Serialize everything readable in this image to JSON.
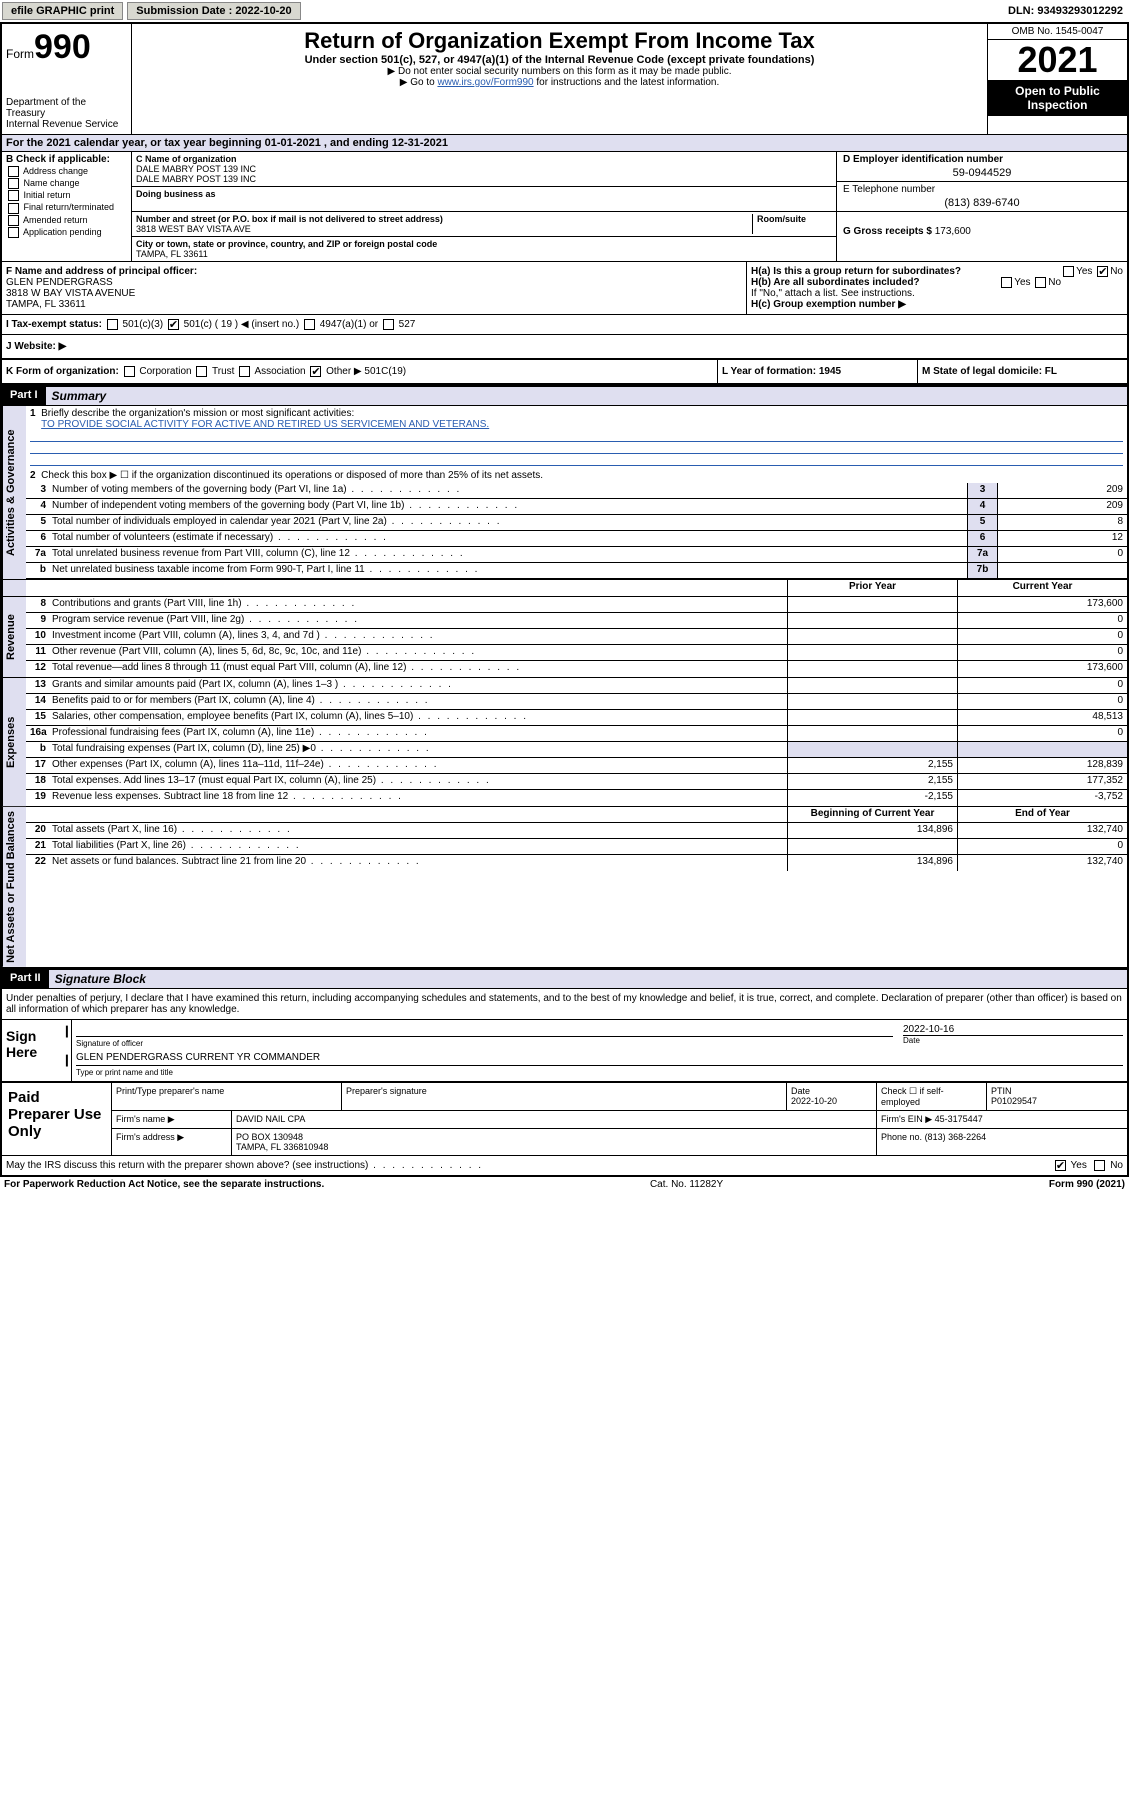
{
  "colors": {
    "link": "#2a5db0",
    "shade": "#dfdff0",
    "button": "#d8d8d0"
  },
  "topbar": {
    "efile": "efile GRAPHIC print",
    "submission": "Submission Date : 2022-10-20",
    "dln": "DLN: 93493293012292"
  },
  "header": {
    "form_label": "Form",
    "form_num": "990",
    "dept": "Department of the Treasury",
    "irs": "Internal Revenue Service",
    "title": "Return of Organization Exempt From Income Tax",
    "subtitle": "Under section 501(c), 527, or 4947(a)(1) of the Internal Revenue Code (except private foundations)",
    "note1": "▶ Do not enter social security numbers on this form as it may be made public.",
    "note2_pre": "▶ Go to ",
    "note2_link": "www.irs.gov/Form990",
    "note2_post": " for instructions and the latest information.",
    "omb": "OMB No. 1545-0047",
    "year": "2021",
    "open": "Open to Public Inspection"
  },
  "line_a": "For the 2021 calendar year, or tax year beginning 01-01-2021   , and ending 12-31-2021",
  "box_b": {
    "label": "B Check if applicable:",
    "opts": [
      "Address change",
      "Name change",
      "Initial return",
      "Final return/terminated",
      "Amended return",
      "Application pending"
    ]
  },
  "box_c": {
    "name_lbl": "C Name of organization",
    "name1": "DALE MABRY POST 139 INC",
    "name2": "DALE MABRY POST 139 INC",
    "dba_lbl": "Doing business as",
    "addr_lbl": "Number and street (or P.O. box if mail is not delivered to street address)",
    "room_lbl": "Room/suite",
    "addr": "3818 WEST BAY VISTA AVE",
    "city_lbl": "City or town, state or province, country, and ZIP or foreign postal code",
    "city": "TAMPA, FL  33611"
  },
  "box_d": {
    "ein_lbl": "D Employer identification number",
    "ein": "59-0944529",
    "tel_lbl": "E Telephone number",
    "tel": "(813) 839-6740",
    "gross_lbl": "G Gross receipts $",
    "gross": "173,600"
  },
  "box_f": {
    "lbl": "F Name and address of principal officer:",
    "name": "GLEN PENDERGRASS",
    "addr1": "3818 W BAY VISTA AVENUE",
    "addr2": "TAMPA, FL  33611"
  },
  "box_h": {
    "ha": "H(a)  Is this a group return for subordinates?",
    "hb": "H(b)  Are all subordinates included?",
    "hb_note": "If \"No,\" attach a list. See instructions.",
    "hc": "H(c)  Group exemption number ▶",
    "yes": "Yes",
    "no": "No"
  },
  "tax_status": {
    "lbl": "I   Tax-exempt status:",
    "o1": "501(c)(3)",
    "o2": "501(c) ( 19 ) ◀ (insert no.)",
    "o3": "4947(a)(1) or",
    "o4": "527"
  },
  "website": {
    "lbl": "J   Website: ▶"
  },
  "row_k": {
    "k": "K Form of organization:",
    "corp": "Corporation",
    "trust": "Trust",
    "assoc": "Association",
    "other": "Other ▶",
    "other_val": "501C(19)",
    "l": "L Year of formation: 1945",
    "m": "M State of legal domicile: FL"
  },
  "part1": {
    "hdr": "Part I",
    "title": "Summary",
    "line1_lbl": "Briefly describe the organization's mission or most significant activities:",
    "line1_val": "TO PROVIDE SOCIAL ACTIVITY FOR ACTIVE AND RETIRED US SERVICEMEN AND VETERANS.",
    "line2": "Check this box ▶ ☐  if the organization discontinued its operations or disposed of more than 25% of its net assets.",
    "rows_gov": [
      {
        "n": "3",
        "t": "Number of voting members of the governing body (Part VI, line 1a)",
        "bn": "3",
        "v": "209"
      },
      {
        "n": "4",
        "t": "Number of independent voting members of the governing body (Part VI, line 1b)",
        "bn": "4",
        "v": "209"
      },
      {
        "n": "5",
        "t": "Total number of individuals employed in calendar year 2021 (Part V, line 2a)",
        "bn": "5",
        "v": "8"
      },
      {
        "n": "6",
        "t": "Total number of volunteers (estimate if necessary)",
        "bn": "6",
        "v": "12"
      },
      {
        "n": "7a",
        "t": "Total unrelated business revenue from Part VIII, column (C), line 12",
        "bn": "7a",
        "v": "0"
      },
      {
        "n": "b",
        "t": "Net unrelated business taxable income from Form 990-T, Part I, line 11",
        "bn": "7b",
        "v": ""
      }
    ],
    "py_hdr": "Prior Year",
    "cy_hdr": "Current Year",
    "rows_rev": [
      {
        "n": "8",
        "t": "Contributions and grants (Part VIII, line 1h)",
        "py": "",
        "cy": "173,600"
      },
      {
        "n": "9",
        "t": "Program service revenue (Part VIII, line 2g)",
        "py": "",
        "cy": "0"
      },
      {
        "n": "10",
        "t": "Investment income (Part VIII, column (A), lines 3, 4, and 7d )",
        "py": "",
        "cy": "0"
      },
      {
        "n": "11",
        "t": "Other revenue (Part VIII, column (A), lines 5, 6d, 8c, 9c, 10c, and 11e)",
        "py": "",
        "cy": "0"
      },
      {
        "n": "12",
        "t": "Total revenue—add lines 8 through 11 (must equal Part VIII, column (A), line 12)",
        "py": "",
        "cy": "173,600"
      }
    ],
    "rows_exp": [
      {
        "n": "13",
        "t": "Grants and similar amounts paid (Part IX, column (A), lines 1–3 )",
        "py": "",
        "cy": "0"
      },
      {
        "n": "14",
        "t": "Benefits paid to or for members (Part IX, column (A), line 4)",
        "py": "",
        "cy": "0"
      },
      {
        "n": "15",
        "t": "Salaries, other compensation, employee benefits (Part IX, column (A), lines 5–10)",
        "py": "",
        "cy": "48,513"
      },
      {
        "n": "16a",
        "t": "Professional fundraising fees (Part IX, column (A), line 11e)",
        "py": "",
        "cy": "0"
      },
      {
        "n": "b",
        "t": "Total fundraising expenses (Part IX, column (D), line 25) ▶0",
        "py": "shade",
        "cy": "shade"
      },
      {
        "n": "17",
        "t": "Other expenses (Part IX, column (A), lines 11a–11d, 11f–24e)",
        "py": "2,155",
        "cy": "128,839"
      },
      {
        "n": "18",
        "t": "Total expenses. Add lines 13–17 (must equal Part IX, column (A), line 25)",
        "py": "2,155",
        "cy": "177,352"
      },
      {
        "n": "19",
        "t": "Revenue less expenses. Subtract line 18 from line 12",
        "py": "-2,155",
        "cy": "-3,752"
      }
    ],
    "na_hdr1": "Beginning of Current Year",
    "na_hdr2": "End of Year",
    "rows_na": [
      {
        "n": "20",
        "t": "Total assets (Part X, line 16)",
        "py": "134,896",
        "cy": "132,740"
      },
      {
        "n": "21",
        "t": "Total liabilities (Part X, line 26)",
        "py": "",
        "cy": "0"
      },
      {
        "n": "22",
        "t": "Net assets or fund balances. Subtract line 21 from line 20",
        "py": "134,896",
        "cy": "132,740"
      }
    ],
    "vtab_gov": "Activities & Governance",
    "vtab_rev": "Revenue",
    "vtab_exp": "Expenses",
    "vtab_na": "Net Assets or Fund Balances"
  },
  "part2": {
    "hdr": "Part II",
    "title": "Signature Block",
    "decl": "Under penalties of perjury, I declare that I have examined this return, including accompanying schedules and statements, and to the best of my knowledge and belief, it is true, correct, and complete. Declaration of preparer (other than officer) is based on all information of which preparer has any knowledge.",
    "sign_here": "Sign Here",
    "sig_officer": "Signature of officer",
    "date_lbl": "Date",
    "sig_date": "2022-10-16",
    "officer_name": "GLEN PENDERGRASS CURRENT YR COMMANDER",
    "type_name": "Type or print name and title",
    "paid": "Paid Preparer Use Only",
    "col_print": "Print/Type preparer's name",
    "col_sig": "Preparer's signature",
    "col_date": "Date",
    "col_date_v": "2022-10-20",
    "col_self": "Check ☐ if self-employed",
    "col_ptin": "PTIN",
    "ptin": "P01029547",
    "firm_name_lbl": "Firm's name     ▶",
    "firm_name": "DAVID NAIL CPA",
    "firm_ein_lbl": "Firm's EIN ▶",
    "firm_ein": "45-3175447",
    "firm_addr_lbl": "Firm's address ▶",
    "firm_addr1": "PO BOX 130948",
    "firm_addr2": "TAMPA, FL  336810948",
    "phone_lbl": "Phone no.",
    "phone": "(813) 368-2264"
  },
  "discuss": {
    "txt": "May the IRS discuss this return with the preparer shown above? (see instructions)",
    "yes": "Yes",
    "no": "No"
  },
  "footer": {
    "left": "For Paperwork Reduction Act Notice, see the separate instructions.",
    "mid": "Cat. No. 11282Y",
    "right": "Form 990 (2021)"
  }
}
